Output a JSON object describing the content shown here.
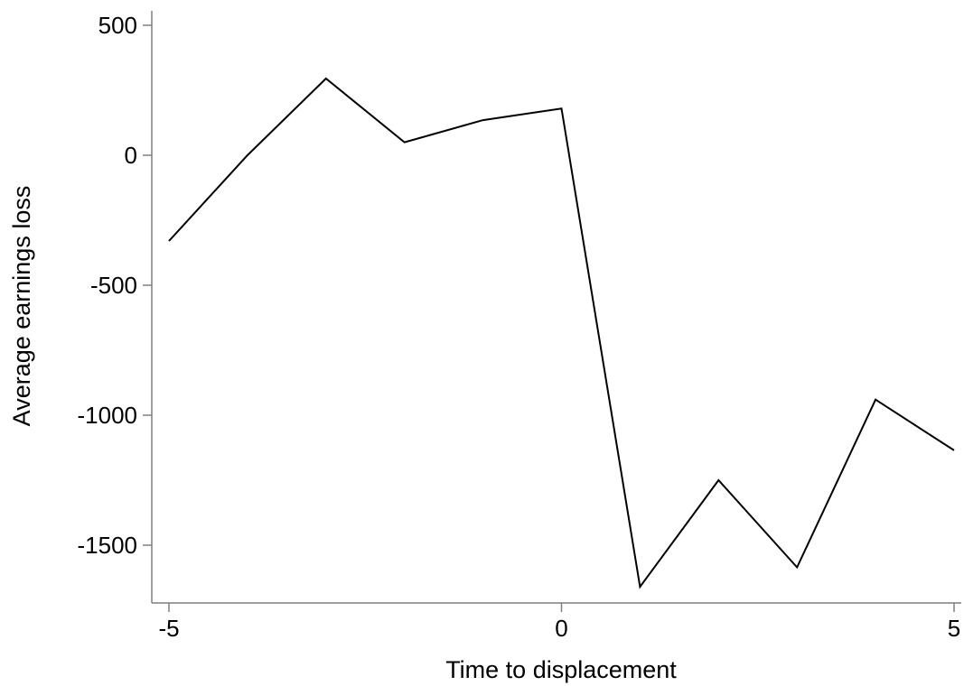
{
  "chart_data": {
    "type": "line",
    "xlabel": "Time to displacement",
    "ylabel": "Average earnings loss",
    "xlim": [
      -5,
      5
    ],
    "ylim": [
      -1650,
      500
    ],
    "xticks": [
      -5,
      0,
      5
    ],
    "xtick_labels": [
      "-5",
      "0",
      "5"
    ],
    "yticks": [
      500,
      0,
      -500,
      -1000,
      -1500
    ],
    "ytick_labels": [
      "500",
      "0",
      "-500",
      "-1000",
      "-1500"
    ],
    "grid": false,
    "legend": "none",
    "series": [
      {
        "x": [
          -5,
          -4,
          -3,
          -2,
          -1,
          0,
          1,
          2,
          3,
          4,
          5
        ],
        "y": [
          -330,
          0,
          295,
          50,
          135,
          180,
          -1660,
          -1250,
          -1585,
          -940,
          -1135
        ]
      }
    ],
    "colors": {
      "line": "#000000",
      "axis": "#7f7f7f"
    }
  }
}
